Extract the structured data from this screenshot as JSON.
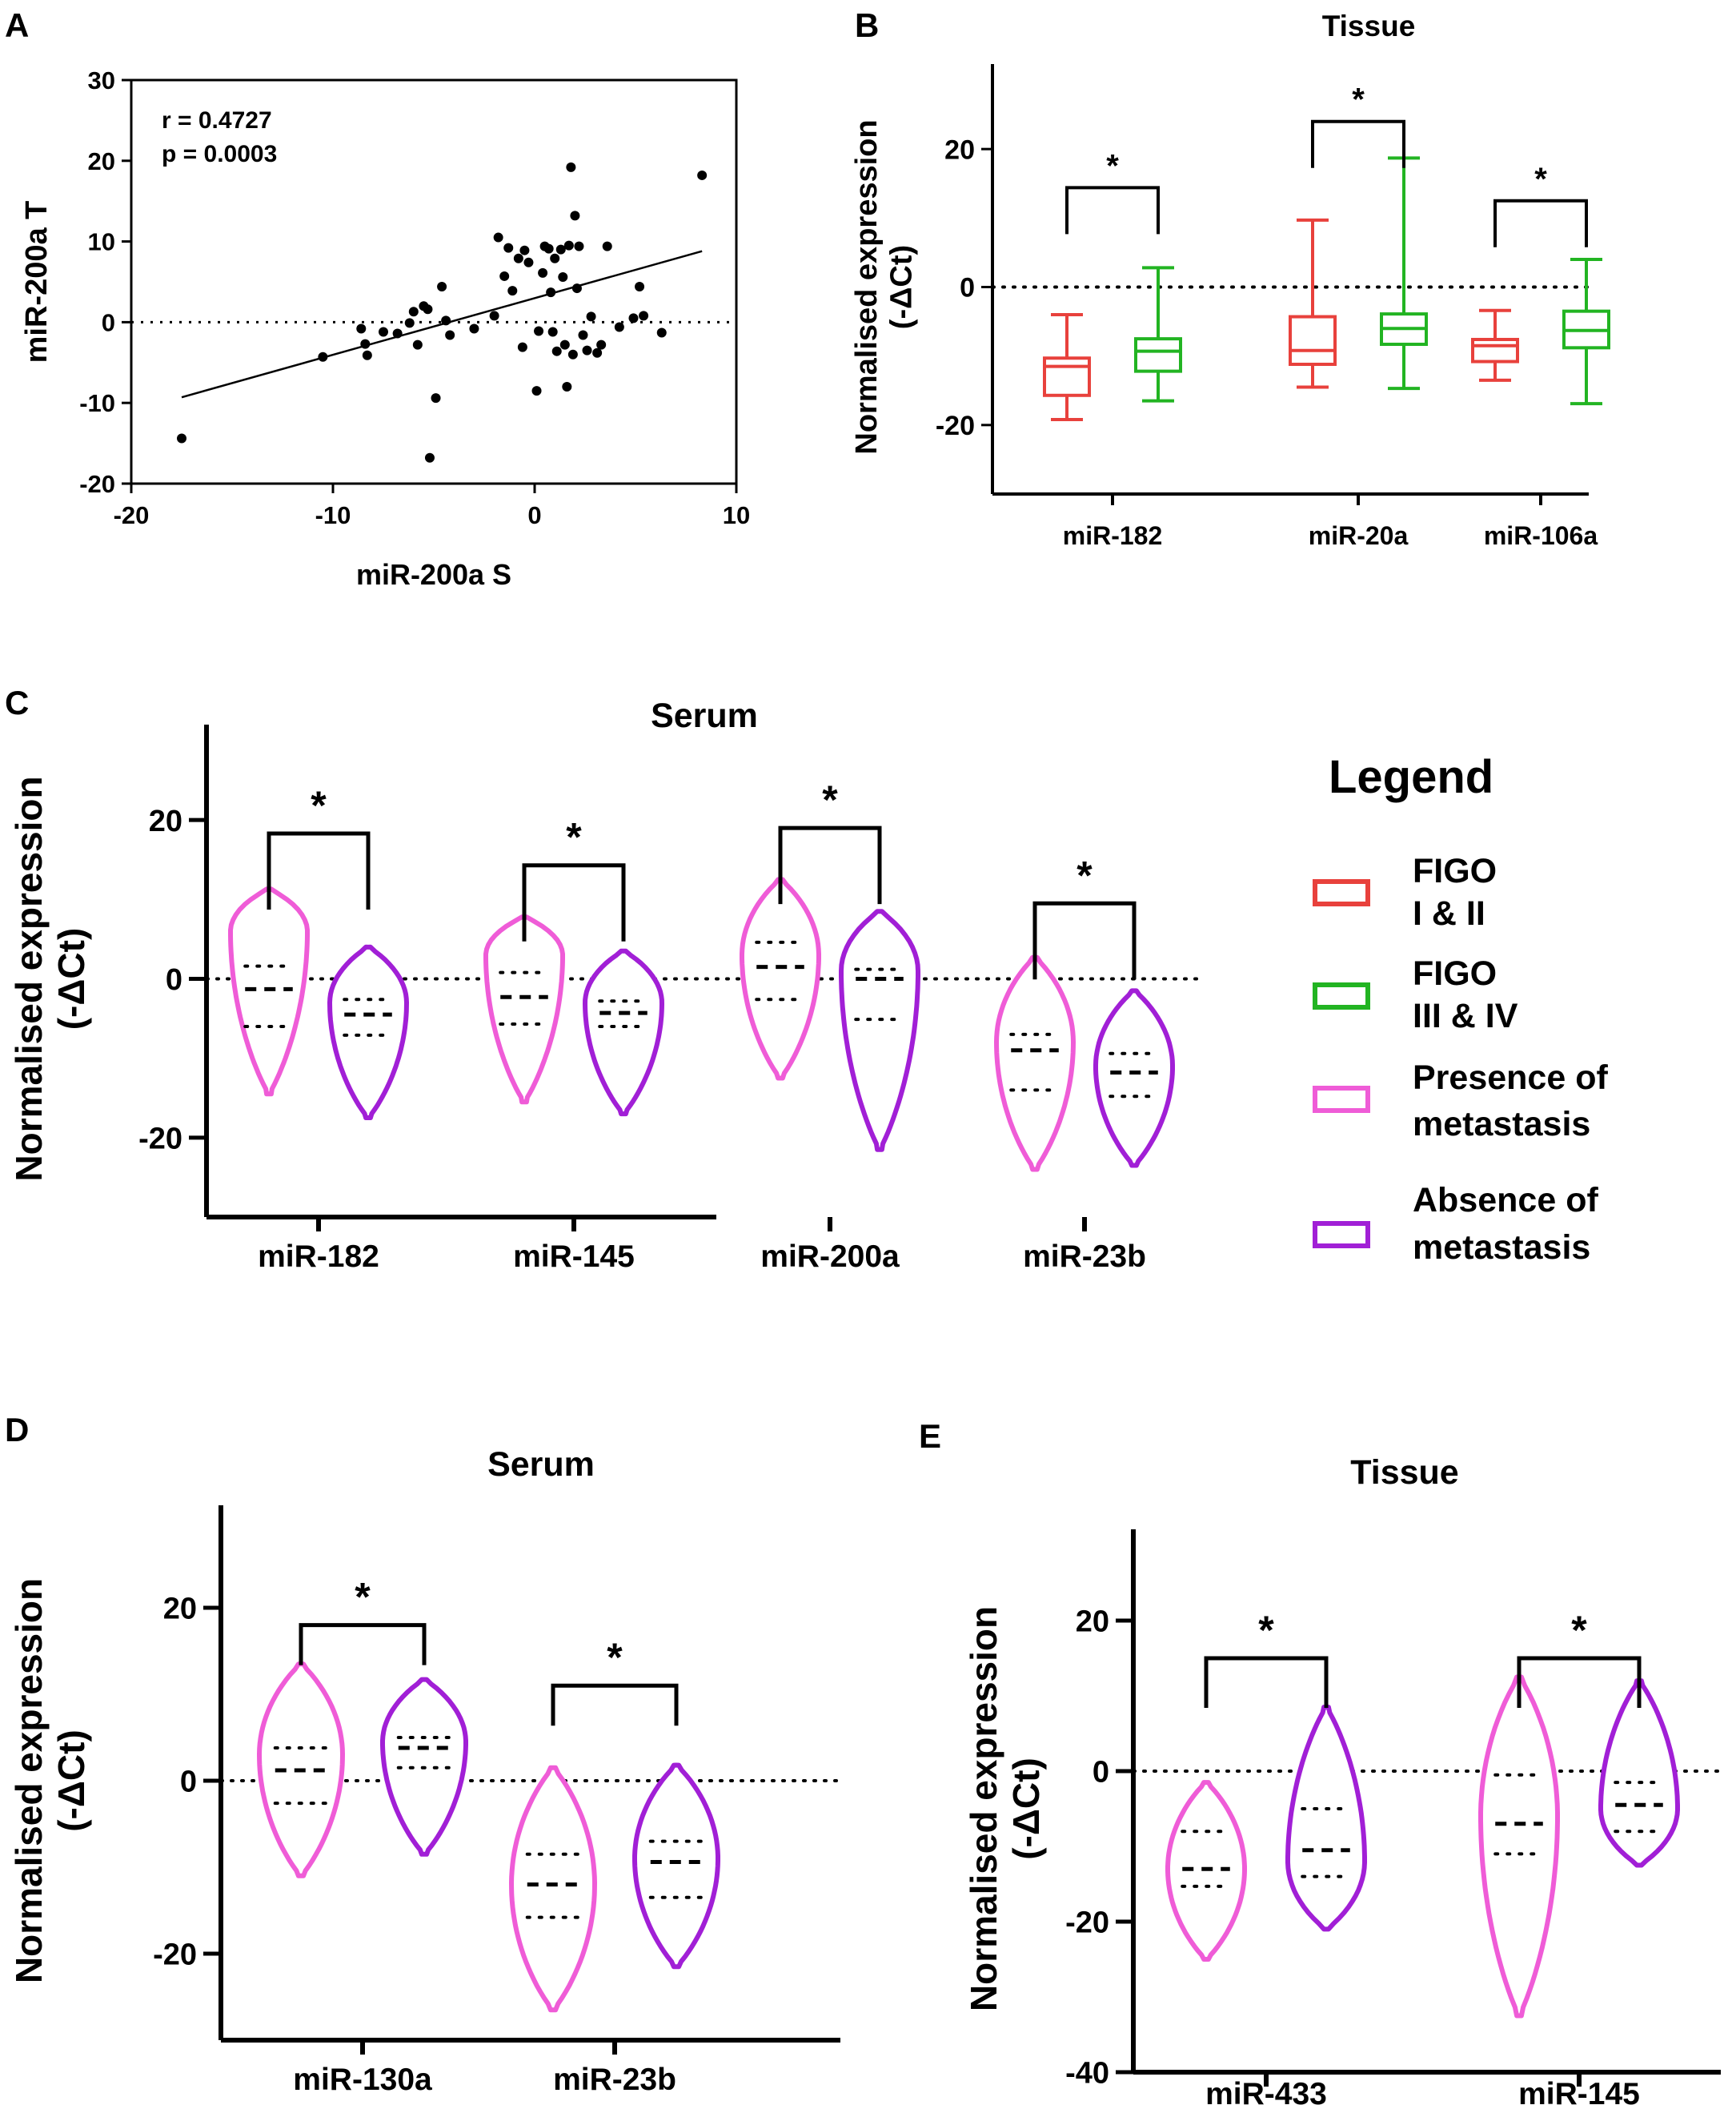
{
  "colors": {
    "figo_1_2": "#e8413c",
    "figo_3_4": "#22b422",
    "metastasis_present": "#ef5cd7",
    "metastasis_absent": "#a11fd6",
    "axis": "#000000"
  },
  "legend": {
    "title": "Legend",
    "items": [
      {
        "line1": "FIGO",
        "line2": "I & II",
        "color": "#e8413c"
      },
      {
        "line1": "FIGO",
        "line2": "III & IV",
        "color": "#22b422"
      },
      {
        "line1": "Presence of",
        "line2": "metastasis",
        "color": "#ef5cd7"
      },
      {
        "line1": "Absence of",
        "line2": "metastasis",
        "color": "#a11fd6"
      }
    ]
  },
  "significance_marker": "*",
  "chart_data": [
    {
      "panel": "A",
      "type": "scatter",
      "title": "",
      "xlabel": "miR-200a S",
      "ylabel": "miR-200a T",
      "xlim": [
        -20,
        10
      ],
      "ylim": [
        -20,
        30
      ],
      "xticks": [
        "-20",
        "-10",
        "0",
        "10"
      ],
      "yticks": [
        "-20",
        "-10",
        "0",
        "10",
        "20",
        "30"
      ],
      "xtick_values": [
        -20,
        -10,
        0,
        10
      ],
      "ytick_values": [
        -20,
        -10,
        0,
        10,
        20,
        30
      ],
      "stats": [
        "r = 0.4727",
        "p = 0.0003"
      ],
      "regression": {
        "x": [
          -17.5,
          8.3
        ],
        "y": [
          -9.3,
          8.8
        ]
      },
      "reference_line_y": 0,
      "points": [
        [
          -17.5,
          -14.4
        ],
        [
          -10.5,
          -4.3
        ],
        [
          -8.6,
          -0.8
        ],
        [
          -8.4,
          -2.7
        ],
        [
          -8.3,
          -4.1
        ],
        [
          -7.5,
          -1.2
        ],
        [
          -6.8,
          -1.4
        ],
        [
          -6.2,
          -0.1
        ],
        [
          -6.0,
          1.3
        ],
        [
          -5.8,
          -2.8
        ],
        [
          -5.5,
          2.0
        ],
        [
          -5.3,
          1.6
        ],
        [
          -5.2,
          -16.8
        ],
        [
          -4.9,
          -9.4
        ],
        [
          -4.6,
          4.4
        ],
        [
          -4.4,
          0.2
        ],
        [
          -4.2,
          -1.6
        ],
        [
          -3.0,
          -0.8
        ],
        [
          -2.0,
          0.8
        ],
        [
          -1.8,
          10.5
        ],
        [
          -1.5,
          5.7
        ],
        [
          -1.3,
          9.2
        ],
        [
          -1.1,
          3.9
        ],
        [
          -0.8,
          7.9
        ],
        [
          -0.6,
          -3.1
        ],
        [
          -0.5,
          8.9
        ],
        [
          -0.3,
          7.4
        ],
        [
          0.1,
          -8.5
        ],
        [
          0.2,
          -1.1
        ],
        [
          0.4,
          6.1
        ],
        [
          0.5,
          9.4
        ],
        [
          0.7,
          9.1
        ],
        [
          0.8,
          3.7
        ],
        [
          0.9,
          -1.2
        ],
        [
          1.0,
          7.9
        ],
        [
          1.1,
          -3.6
        ],
        [
          1.3,
          9.0
        ],
        [
          1.4,
          5.6
        ],
        [
          1.5,
          -2.8
        ],
        [
          1.6,
          -8.0
        ],
        [
          1.7,
          9.5
        ],
        [
          1.8,
          19.2
        ],
        [
          1.9,
          -4.0
        ],
        [
          2.0,
          13.2
        ],
        [
          2.1,
          4.2
        ],
        [
          2.2,
          9.4
        ],
        [
          2.4,
          -1.6
        ],
        [
          2.6,
          -3.5
        ],
        [
          2.8,
          0.7
        ],
        [
          3.1,
          -3.8
        ],
        [
          3.3,
          -2.8
        ],
        [
          3.6,
          9.4
        ],
        [
          4.2,
          -0.6
        ],
        [
          4.9,
          0.5
        ],
        [
          5.2,
          4.4
        ],
        [
          5.4,
          0.8
        ],
        [
          6.3,
          -1.3
        ],
        [
          8.3,
          18.2
        ]
      ]
    },
    {
      "panel": "B",
      "type": "box",
      "title": "Tissue",
      "xlabel": "",
      "ylabel": "Normalised expression (-ΔCt)",
      "ylabel_lines": [
        "Normalised expression",
        "(-ΔCt)"
      ],
      "ylim": [
        -30,
        30
      ],
      "yticks": [
        "-20",
        "0",
        "20"
      ],
      "ytick_values": [
        -20,
        0,
        20
      ],
      "categories": [
        "miR-182",
        "miR-20a",
        "miR-106a"
      ],
      "series": [
        {
          "name": "FIGO I & II",
          "color": "#e8413c",
          "values": [
            {
              "min": -19.2,
              "q1": -15.7,
              "median": -11.5,
              "q3": -10.3,
              "max": -4.0
            },
            {
              "min": -14.5,
              "q1": -11.2,
              "median": -9.2,
              "q3": -4.3,
              "max": 9.7
            },
            {
              "min": -13.5,
              "q1": -10.8,
              "median": -8.5,
              "q3": -7.6,
              "max": -3.4
            }
          ]
        },
        {
          "name": "FIGO III & IV",
          "color": "#22b422",
          "values": [
            {
              "min": -16.5,
              "q1": -12.2,
              "median": -9.3,
              "q3": -7.5,
              "max": 2.8
            },
            {
              "min": -14.7,
              "q1": -8.3,
              "median": -6.0,
              "q3": -3.9,
              "max": 18.7
            },
            {
              "min": -16.9,
              "q1": -8.8,
              "median": -6.3,
              "q3": -3.5,
              "max": 4.0
            }
          ]
        }
      ],
      "brackets": [
        {
          "y": 14.4,
          "label": "*"
        },
        {
          "y": 24.0,
          "label": "*"
        },
        {
          "y": 12.5,
          "label": "*"
        }
      ],
      "reference_line_y": 0
    },
    {
      "panel": "C",
      "type": "violin",
      "title": "Serum",
      "ylabel": "Normalised expression (-ΔCt)",
      "ylabel_lines": [
        "Normalised expression",
        "(-ΔCt)"
      ],
      "ylim": [
        -30,
        30
      ],
      "yticks": [
        "-20",
        "0",
        "20"
      ],
      "ytick_values": [
        -20,
        0,
        20
      ],
      "categories": [
        "miR-182",
        "miR-145",
        "miR-200a",
        "miR-23b"
      ],
      "series": [
        {
          "name": "Presence of metastasis",
          "color": "#ef5cd7",
          "values": [
            {
              "min": -14.5,
              "max": 11.3,
              "q1": -6.0,
              "median": -1.3,
              "q3": 1.6,
              "mode": 6.0
            },
            {
              "min": -15.5,
              "max": 7.8,
              "q1": -5.7,
              "median": -2.3,
              "q3": 0.8,
              "mode": 3.0
            },
            {
              "min": -12.5,
              "max": 12.5,
              "q1": -2.6,
              "median": 1.5,
              "q3": 4.6,
              "mode": 3.0
            },
            {
              "min": -24.0,
              "max": 2.7,
              "q1": -14.0,
              "median": -9.0,
              "q3": -7.0,
              "mode": -8.0
            }
          ]
        },
        {
          "name": "Absence of metastasis",
          "color": "#a11fd6",
          "values": [
            {
              "min": -17.5,
              "max": 4.0,
              "q1": -7.1,
              "median": -4.5,
              "q3": -2.6,
              "mode": -3.0
            },
            {
              "min": -17.0,
              "max": 3.5,
              "q1": -6.0,
              "median": -4.3,
              "q3": -2.8,
              "mode": -3.0
            },
            {
              "min": -21.5,
              "max": 8.5,
              "q1": -5.1,
              "median": 0.0,
              "q3": 1.2,
              "mode": 1.0
            },
            {
              "min": -23.5,
              "max": -1.5,
              "q1": -14.8,
              "median": -11.8,
              "q3": -9.4,
              "mode": -11.0
            }
          ]
        }
      ],
      "brackets": [
        {
          "y": 18.3,
          "label": "*"
        },
        {
          "y": 14.3,
          "label": "*"
        },
        {
          "y": 19.0,
          "label": "*"
        },
        {
          "y": 9.5,
          "label": "*"
        }
      ],
      "reference_line_y": 0
    },
    {
      "panel": "D",
      "type": "violin",
      "title": "Serum",
      "ylabel": "Normalised expression (-ΔCt)",
      "ylabel_lines": [
        "Normalised expression",
        "(-ΔCt)"
      ],
      "ylim": [
        -30,
        30
      ],
      "yticks": [
        "-20",
        "0",
        "20"
      ],
      "ytick_values": [
        -20,
        0,
        20
      ],
      "categories": [
        "miR-130a",
        "miR-23b"
      ],
      "series": [
        {
          "name": "Presence of metastasis",
          "color": "#ef5cd7",
          "values": [
            {
              "min": -11.0,
              "max": 13.5,
              "q1": -2.6,
              "median": 1.2,
              "q3": 3.8,
              "mode": 3.0
            },
            {
              "min": -26.5,
              "max": 1.5,
              "q1": -15.8,
              "median": -12.0,
              "q3": -8.5,
              "mode": -12.0
            }
          ]
        },
        {
          "name": "Absence of metastasis",
          "color": "#a11fd6",
          "values": [
            {
              "min": -8.5,
              "max": 11.7,
              "q1": 1.5,
              "median": 3.8,
              "q3": 5.0,
              "mode": 4.5
            },
            {
              "min": -21.5,
              "max": 1.8,
              "q1": -13.5,
              "median": -9.4,
              "q3": -7.0,
              "mode": -9.0
            }
          ]
        }
      ],
      "brackets": [
        {
          "y": 18.0,
          "label": "*"
        },
        {
          "y": 11.0,
          "label": "*"
        }
      ],
      "reference_line_y": 0
    },
    {
      "panel": "E",
      "type": "violin",
      "title": "Tissue",
      "ylabel": "Normalised expression (-ΔCt)",
      "ylabel_lines": [
        "Normalised expression",
        "(-ΔCt)"
      ],
      "ylim": [
        -40,
        30
      ],
      "yticks": [
        "-40",
        "-20",
        "0",
        "20"
      ],
      "ytick_values": [
        -40,
        -20,
        0,
        20
      ],
      "categories": [
        "miR-433",
        "miR-145"
      ],
      "series": [
        {
          "name": "Presence of metastasis",
          "color": "#ef5cd7",
          "values": [
            {
              "min": -25.0,
              "max": -1.5,
              "q1": -15.3,
              "median": -13.0,
              "q3": -8.0,
              "mode": -13.0
            },
            {
              "min": -32.5,
              "max": 12.5,
              "q1": -11.0,
              "median": -7.0,
              "q3": -0.5,
              "mode": -6.0
            }
          ]
        },
        {
          "name": "Absence of metastasis",
          "color": "#a11fd6",
          "values": [
            {
              "min": -21.0,
              "max": 8.5,
              "q1": -14.0,
              "median": -10.5,
              "q3": -5.0,
              "mode": -12.0
            },
            {
              "min": -12.5,
              "max": 12.0,
              "q1": -8.0,
              "median": -4.5,
              "q3": -1.5,
              "mode": -5.0
            }
          ]
        }
      ],
      "brackets": [
        {
          "y": 15.0,
          "label": "*"
        },
        {
          "y": 15.0,
          "label": "*"
        }
      ],
      "reference_line_y": 0
    }
  ]
}
